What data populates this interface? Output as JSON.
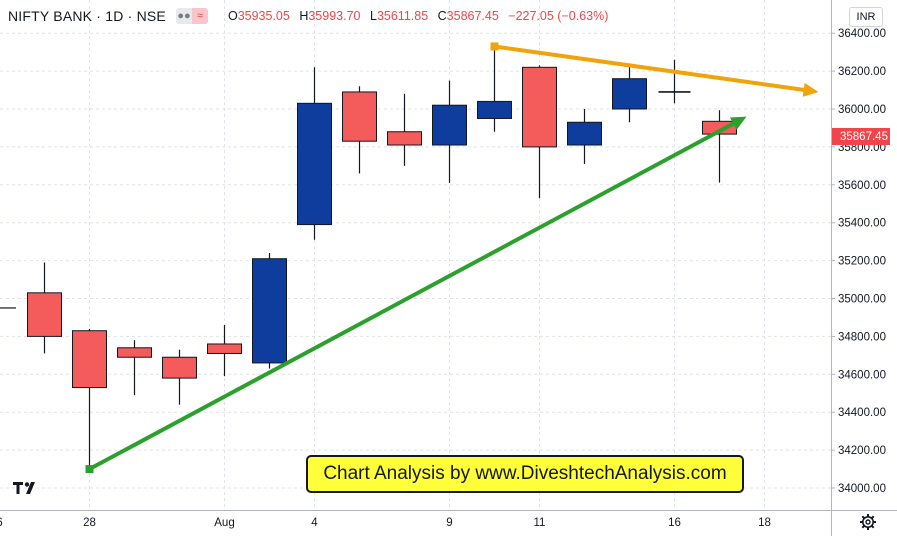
{
  "header": {
    "symbol": "NIFTY BANK · 1D · NSE",
    "open_key": "O",
    "open": "35935.05",
    "high_key": "H",
    "high": "35993.70",
    "low_key": "L",
    "low": "35611.85",
    "close_key": "C",
    "close": "35867.45",
    "change": "−227.05 (−0.63%)"
  },
  "currency_button": "INR",
  "banner_text": "Chart Analysis by www.DiveshtechAnalysis.com",
  "last_price_tag": "35867.45",
  "colors": {
    "up": "#0f3d9e",
    "down": "#f45b5b",
    "support_arrow": "#2ca02c",
    "resistance_arrow": "#f0a30a"
  },
  "chart_data": {
    "type": "candlestick",
    "ylim": [
      33850,
      36500
    ],
    "y_ticks": [
      "34000.00",
      "34200.00",
      "34400.00",
      "34600.00",
      "34800.00",
      "35000.00",
      "35200.00",
      "35400.00",
      "35600.00",
      "35800.00",
      "36000.00",
      "36200.00",
      "36400.00"
    ],
    "x_tick_labels": [
      {
        "label": "6",
        "i": -1
      },
      {
        "label": "28",
        "i": 1
      },
      {
        "label": "Aug",
        "i": 4
      },
      {
        "label": "4",
        "i": 6
      },
      {
        "label": "9",
        "i": 9
      },
      {
        "label": "11",
        "i": 11
      },
      {
        "label": "16",
        "i": 14
      },
      {
        "label": "18",
        "i": 16
      }
    ],
    "candles": [
      {
        "i": 0,
        "o": 35030,
        "h": 35190,
        "l": 34710,
        "c": 34800
      },
      {
        "i": 1,
        "o": 34830,
        "h": 34840,
        "l": 34110,
        "c": 34530
      },
      {
        "i": 2,
        "o": 34740,
        "h": 34780,
        "l": 34490,
        "c": 34690
      },
      {
        "i": 3,
        "o": 34690,
        "h": 34730,
        "l": 34440,
        "c": 34580
      },
      {
        "i": 4,
        "o": 34760,
        "h": 34860,
        "l": 34590,
        "c": 34710
      },
      {
        "i": 5,
        "o": 34660,
        "h": 35240,
        "l": 34630,
        "c": 35210
      },
      {
        "i": 6,
        "o": 35390,
        "h": 36220,
        "l": 35310,
        "c": 36030
      },
      {
        "i": 7,
        "o": 36090,
        "h": 36120,
        "l": 35660,
        "c": 35830
      },
      {
        "i": 8,
        "o": 35880,
        "h": 36080,
        "l": 35700,
        "c": 35810
      },
      {
        "i": 9,
        "o": 35810,
        "h": 36150,
        "l": 35610,
        "c": 36020
      },
      {
        "i": 10,
        "o": 35950,
        "h": 36310,
        "l": 35880,
        "c": 36040
      },
      {
        "i": 11,
        "o": 36220,
        "h": 36230,
        "l": 35530,
        "c": 35800
      },
      {
        "i": 12,
        "o": 35810,
        "h": 36000,
        "l": 35710,
        "c": 35930
      },
      {
        "i": 13,
        "o": 36000,
        "h": 36240,
        "l": 35930,
        "c": 36160
      },
      {
        "i": 14,
        "o": 36090,
        "h": 36260,
        "l": 36030,
        "c": 36090
      },
      {
        "i": 15,
        "o": 35935.05,
        "h": 35993.7,
        "l": 35611.85,
        "c": 35867.45
      }
    ],
    "partial_candle_left": {
      "price": 34950
    },
    "trendlines": [
      {
        "name": "support",
        "from": {
          "i": 1,
          "price": 34100
        },
        "to": {
          "i": 15.6,
          "price": 35960
        }
      },
      {
        "name": "resistance",
        "from": {
          "i": 10,
          "price": 36330
        },
        "to": {
          "i": 17.2,
          "price": 36090
        }
      }
    ]
  }
}
